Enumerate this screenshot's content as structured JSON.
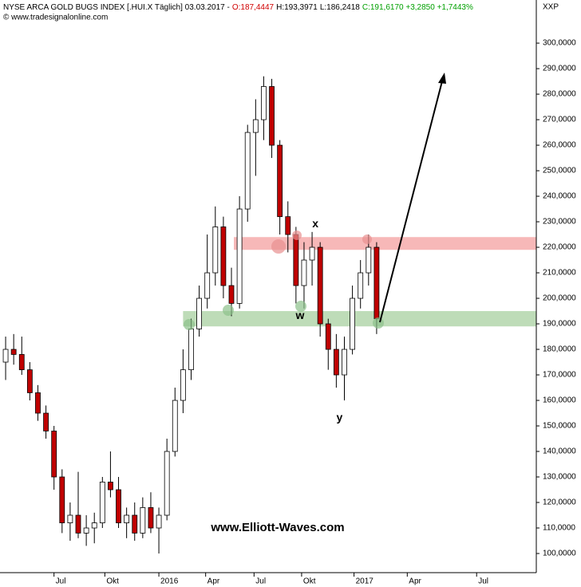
{
  "chart_data": {
    "type": "candlestick",
    "title": "NYSE ARCA GOLD BUGS INDEX [.HUI.X  Täglich] 03.03.2017 -",
    "ohlc_header": [
      {
        "text": "O:187,4447",
        "color": "#d00000"
      },
      {
        "text": "H:193,3971",
        "color": "#000000"
      },
      {
        "text": "L:186,2418",
        "color": "#000000"
      },
      {
        "text": "C:191,6170 +3,2850 +1,7443%",
        "color": "#00a000"
      }
    ],
    "source": "© www.tradesignalonline.com",
    "axis_name": "XXP",
    "watermark": "www.Elliott-Waves.com",
    "annotations": [
      {
        "text": "x",
        "x": 38.9,
        "y": 229
      },
      {
        "text": "w",
        "x": 37.0,
        "y": 193
      },
      {
        "text": "y",
        "x": 41.9,
        "y": 153
      }
    ],
    "up_color": "#ffffff",
    "down_color": "#c00000",
    "zones": [
      {
        "from": 219,
        "to": 224,
        "start": 28.8,
        "color": "#f4a0a0"
      },
      {
        "from": 189,
        "to": 195,
        "start": 22.5,
        "color": "#a8d0a0"
      }
    ],
    "categories": [
      null,
      null,
      null,
      null,
      null,
      null,
      null,
      null,
      null,
      null,
      null,
      null,
      null,
      null,
      null,
      null,
      null,
      null,
      null,
      null,
      null,
      null,
      null,
      null,
      null,
      null,
      null,
      null,
      null,
      null,
      null,
      null,
      null,
      null,
      null,
      null,
      null,
      null,
      null,
      null,
      null,
      null,
      null,
      null,
      null,
      null,
      null
    ],
    "open": [
      175,
      180,
      178,
      172,
      163,
      155,
      148,
      130,
      112,
      115,
      108,
      110,
      112,
      128,
      125,
      112,
      115,
      108,
      118,
      110,
      115,
      140,
      160,
      172,
      188,
      200,
      210,
      228,
      205,
      198,
      235,
      265,
      270,
      283,
      260,
      232,
      225,
      205,
      215,
      220,
      190,
      180,
      170,
      180,
      200,
      210,
      220
    ],
    "high": [
      185,
      186,
      185,
      175,
      166,
      158,
      150,
      133,
      120,
      132,
      115,
      116,
      130,
      140,
      130,
      118,
      120,
      122,
      124,
      118,
      145,
      165,
      180,
      192,
      205,
      225,
      236,
      232,
      212,
      240,
      268,
      278,
      287,
      286,
      262,
      238,
      228,
      222,
      226,
      222,
      192,
      186,
      185,
      205,
      215,
      225,
      222
    ],
    "low": [
      168,
      174,
      170,
      160,
      152,
      145,
      125,
      108,
      105,
      106,
      103,
      104,
      110,
      122,
      110,
      106,
      105,
      106,
      108,
      100,
      113,
      138,
      155,
      168,
      185,
      196,
      205,
      200,
      193,
      196,
      230,
      248,
      262,
      255,
      225,
      218,
      198,
      196,
      205,
      185,
      172,
      165,
      160,
      178,
      196,
      205,
      186
    ],
    "close": [
      180,
      178,
      172,
      163,
      155,
      148,
      130,
      112,
      115,
      108,
      110,
      112,
      128,
      125,
      112,
      115,
      108,
      118,
      110,
      115,
      140,
      160,
      172,
      188,
      200,
      210,
      228,
      205,
      198,
      235,
      265,
      270,
      283,
      260,
      232,
      225,
      205,
      215,
      220,
      190,
      180,
      170,
      180,
      200,
      210,
      220,
      192
    ],
    "xlim": [
      0,
      66.3
    ],
    "xticks": [
      {
        "value": 6.5,
        "label": "Jul"
      },
      {
        "value": 12.8,
        "label": "Okt"
      },
      {
        "value": 19.5,
        "label": "2016"
      },
      {
        "value": 25.3,
        "label": "Apr"
      },
      {
        "value": 31.3,
        "label": "Jul"
      },
      {
        "value": 37.2,
        "label": "Okt"
      },
      {
        "value": 43.7,
        "label": "2017"
      },
      {
        "value": 50.3,
        "label": "Apr"
      },
      {
        "value": 58.9,
        "label": "Jul"
      }
    ],
    "ylim": [
      92.5,
      316.9
    ],
    "yticks": [
      {
        "value": 100,
        "label": "100,0000"
      },
      {
        "value": 110,
        "label": "110,0000"
      },
      {
        "value": 120,
        "label": "120,0000"
      },
      {
        "value": 130,
        "label": "130,0000"
      },
      {
        "value": 140,
        "label": "140,0000"
      },
      {
        "value": 150,
        "label": "150,0000"
      },
      {
        "value": 160,
        "label": "160,0000"
      },
      {
        "value": 170,
        "label": "170,0000"
      },
      {
        "value": 180,
        "label": "180,0000"
      },
      {
        "value": 190,
        "label": "190,0000"
      },
      {
        "value": 200,
        "label": "200,0000"
      },
      {
        "value": 210,
        "label": "210,0000"
      },
      {
        "value": 220,
        "label": "220,0000"
      },
      {
        "value": 230,
        "label": "230,0000"
      },
      {
        "value": 240,
        "label": "240,0000"
      },
      {
        "value": 250,
        "label": "250,0000"
      },
      {
        "value": 260,
        "label": "260,0000"
      },
      {
        "value": 270,
        "label": "270,0000"
      },
      {
        "value": 280,
        "label": "280,0000"
      },
      {
        "value": 290,
        "label": "290,0000"
      },
      {
        "value": 300,
        "label": "300,0000"
      }
    ]
  }
}
